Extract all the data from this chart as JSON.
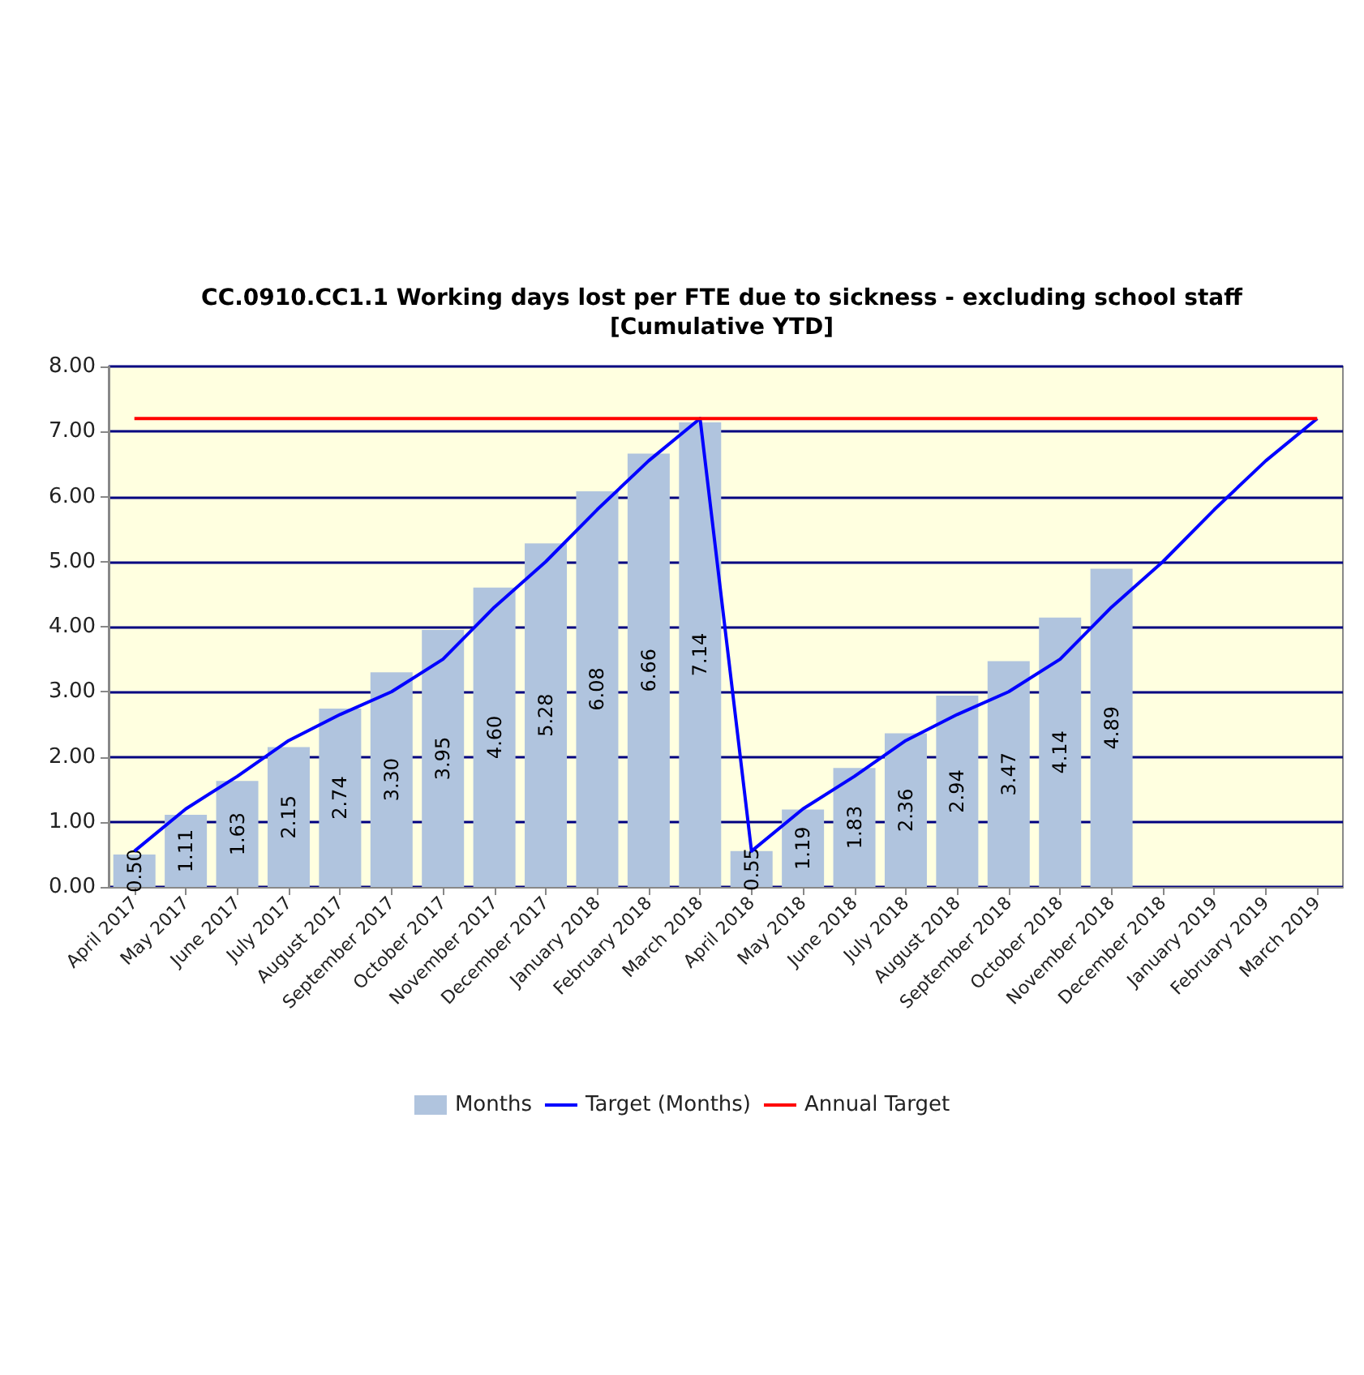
{
  "chart_data": {
    "type": "bar",
    "title": "CC.0910.CC1.1 Working days lost per FTE due to sickness - excluding school staff\n[Cumulative YTD]",
    "categories": [
      "April 2017",
      "May 2017",
      "June 2017",
      "July 2017",
      "August 2017",
      "September 2017",
      "October 2017",
      "November 2017",
      "December 2017",
      "January 2018",
      "February 2018",
      "March 2018",
      "April 2018",
      "May 2018",
      "June 2018",
      "July 2018",
      "August 2018",
      "September 2018",
      "October 2018",
      "November 2018",
      "December 2018",
      "January 2019",
      "February 2019",
      "March 2019"
    ],
    "series": [
      {
        "name": "Months",
        "color": "#b0c4de",
        "values": [
          0.5,
          1.11,
          1.63,
          2.15,
          2.74,
          3.3,
          3.95,
          4.6,
          5.28,
          6.08,
          6.66,
          7.14,
          0.55,
          1.19,
          1.83,
          2.36,
          2.94,
          3.47,
          4.14,
          4.89,
          null,
          null,
          null,
          null
        ],
        "value_labels": [
          "0.50",
          "1.11",
          "1.63",
          "2.15",
          "2.74",
          "3.30",
          "3.95",
          "4.60",
          "5.28",
          "6.08",
          "6.66",
          "7.14",
          "0.55",
          "1.19",
          "1.83",
          "2.36",
          "2.94",
          "3.47",
          "4.14",
          "4.89",
          null,
          null,
          null,
          null
        ]
      },
      {
        "name": "Target (Months)",
        "type": "line",
        "color": "#0000ff",
        "values": [
          0.55,
          1.2,
          1.7,
          2.25,
          2.65,
          3.0,
          3.5,
          4.3,
          5.0,
          5.8,
          6.55,
          7.2,
          0.55,
          1.2,
          1.7,
          2.25,
          2.65,
          3.0,
          3.5,
          4.3,
          5.0,
          5.8,
          6.55,
          7.2
        ]
      },
      {
        "name": "Annual Target",
        "type": "line",
        "color": "#ff0000",
        "values": [
          7.2,
          7.2,
          7.2,
          7.2,
          7.2,
          7.2,
          7.2,
          7.2,
          7.2,
          7.2,
          7.2,
          7.2,
          7.2,
          7.2,
          7.2,
          7.2,
          7.2,
          7.2,
          7.2,
          7.2,
          7.2,
          7.2,
          7.2,
          7.2
        ]
      }
    ],
    "ylim": [
      0,
      8
    ],
    "yticks": [
      {
        "value": 0,
        "label": "0.00"
      },
      {
        "value": 1,
        "label": "1.00"
      },
      {
        "value": 2,
        "label": "2.00"
      },
      {
        "value": 3,
        "label": "3.00"
      },
      {
        "value": 4,
        "label": "4.00"
      },
      {
        "value": 5,
        "label": "5.00"
      },
      {
        "value": 6,
        "label": "6.00"
      },
      {
        "value": 7,
        "label": "7.00"
      },
      {
        "value": 8,
        "label": "8.00"
      }
    ],
    "grid": "y",
    "legend": "bottom",
    "marker": "none",
    "line_style": "solid"
  }
}
